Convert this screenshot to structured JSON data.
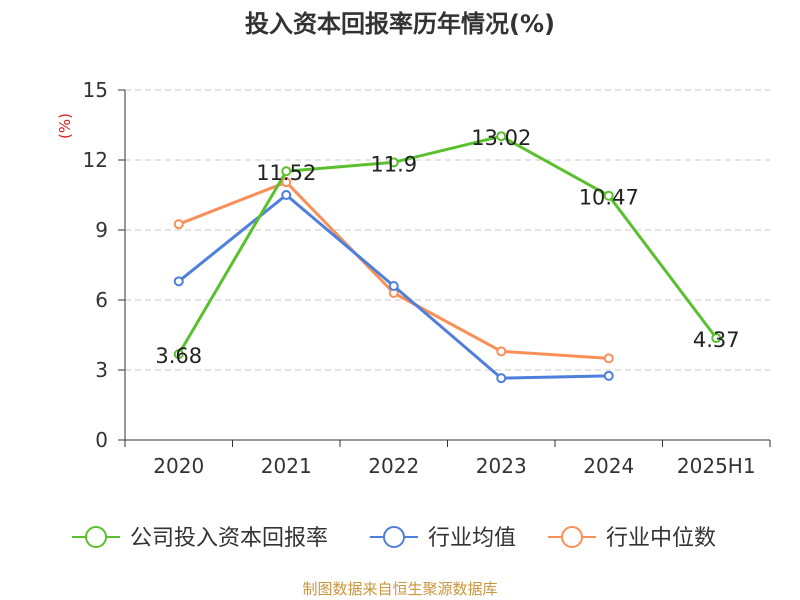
{
  "chart_data": {
    "type": "line",
    "title": "投入资本回报率历年情况(%)",
    "ylabel": "(%)",
    "categories": [
      "2020",
      "2021",
      "2022",
      "2023",
      "2024",
      "2025H1"
    ],
    "ylim": [
      0,
      15
    ],
    "yticks": [
      0,
      3,
      6,
      9,
      12,
      15
    ],
    "grid": true,
    "legend_position": "bottom",
    "series": [
      {
        "name": "公司投入资本回报率",
        "color": "#5ac02e",
        "values": [
          3.68,
          11.52,
          11.9,
          13.02,
          10.47,
          4.37
        ],
        "labels": [
          "3.68",
          "11.52",
          "11.9",
          "13.02",
          "10.47",
          "4.37"
        ]
      },
      {
        "name": "行业均值",
        "color": "#4e7fdc",
        "values": [
          6.8,
          10.5,
          6.6,
          2.65,
          2.75,
          null
        ]
      },
      {
        "name": "行业中位数",
        "color": "#f89058",
        "values": [
          9.25,
          11.05,
          6.3,
          3.8,
          3.5,
          null
        ]
      }
    ],
    "source": "制图数据来自恒生聚源数据库"
  }
}
